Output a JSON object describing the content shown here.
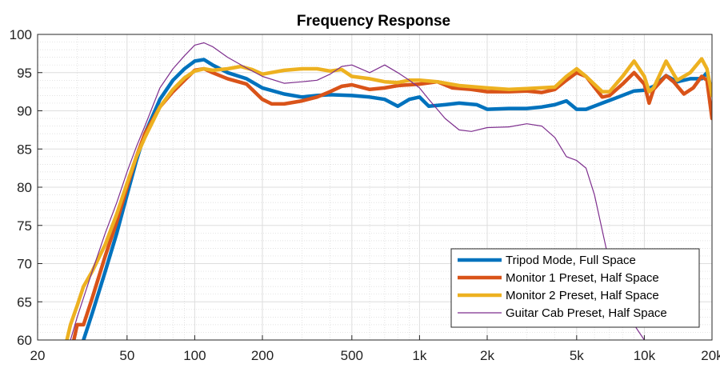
{
  "chart_data": {
    "type": "line",
    "title": "Frequency Response",
    "xlabel": "",
    "ylabel": "",
    "x_scale": "log",
    "xlim": [
      20,
      20000
    ],
    "ylim": [
      60,
      100
    ],
    "x_ticks": [
      20,
      50,
      100,
      200,
      500,
      1000,
      2000,
      5000,
      10000,
      20000
    ],
    "x_tick_labels": [
      "20",
      "50",
      "100",
      "200",
      "500",
      "1k",
      "2k",
      "5k",
      "10k",
      "20k"
    ],
    "y_ticks": [
      60,
      65,
      70,
      75,
      80,
      85,
      90,
      95,
      100
    ],
    "y_tick_labels": [
      "60",
      "65",
      "70",
      "75",
      "80",
      "85",
      "90",
      "95",
      "100"
    ],
    "grid": true,
    "minor_grid": true,
    "legend_position": "bottom-right",
    "series": [
      {
        "name": "Tripod Mode, Full Space",
        "color": "#0072BD",
        "style": "thick",
        "points": [
          [
            32,
            60
          ],
          [
            35,
            63.5
          ],
          [
            40,
            69
          ],
          [
            45,
            74
          ],
          [
            50,
            79
          ],
          [
            55,
            83.5
          ],
          [
            60,
            87
          ],
          [
            70,
            91.5
          ],
          [
            80,
            94
          ],
          [
            90,
            95.5
          ],
          [
            100,
            96.5
          ],
          [
            110,
            96.7
          ],
          [
            120,
            96
          ],
          [
            140,
            95
          ],
          [
            170,
            94.2
          ],
          [
            200,
            93
          ],
          [
            250,
            92.2
          ],
          [
            300,
            91.8
          ],
          [
            350,
            92
          ],
          [
            400,
            92.1
          ],
          [
            500,
            92
          ],
          [
            600,
            91.8
          ],
          [
            700,
            91.5
          ],
          [
            800,
            90.6
          ],
          [
            900,
            91.5
          ],
          [
            1000,
            91.8
          ],
          [
            1100,
            90.6
          ],
          [
            1300,
            90.8
          ],
          [
            1500,
            91
          ],
          [
            1800,
            90.8
          ],
          [
            2000,
            90.2
          ],
          [
            2500,
            90.3
          ],
          [
            3000,
            90.3
          ],
          [
            3500,
            90.5
          ],
          [
            4000,
            90.8
          ],
          [
            4500,
            91.3
          ],
          [
            5000,
            90.2
          ],
          [
            5500,
            90.2
          ],
          [
            6500,
            91
          ],
          [
            7500,
            91.7
          ],
          [
            9000,
            92.6
          ],
          [
            10000,
            92.7
          ],
          [
            11000,
            93.2
          ],
          [
            12500,
            94.6
          ],
          [
            14000,
            93.8
          ],
          [
            16000,
            94.2
          ],
          [
            18000,
            94.2
          ],
          [
            19000,
            95
          ],
          [
            20000,
            92.5
          ]
        ]
      },
      {
        "name": "Monitor 1 Preset, Half Space",
        "color": "#D95319",
        "style": "thick",
        "points": [
          [
            29,
            60
          ],
          [
            30,
            62
          ],
          [
            32,
            62
          ],
          [
            35,
            65.5
          ],
          [
            40,
            71
          ],
          [
            45,
            75.5
          ],
          [
            50,
            80
          ],
          [
            55,
            84
          ],
          [
            60,
            87
          ],
          [
            70,
            90.5
          ],
          [
            80,
            92.5
          ],
          [
            90,
            94
          ],
          [
            100,
            95.3
          ],
          [
            110,
            95.5
          ],
          [
            120,
            95
          ],
          [
            140,
            94.2
          ],
          [
            170,
            93.5
          ],
          [
            200,
            91.5
          ],
          [
            220,
            90.9
          ],
          [
            250,
            90.9
          ],
          [
            300,
            91.3
          ],
          [
            350,
            91.8
          ],
          [
            400,
            92.5
          ],
          [
            450,
            93.2
          ],
          [
            500,
            93.4
          ],
          [
            600,
            92.8
          ],
          [
            700,
            93
          ],
          [
            800,
            93.3
          ],
          [
            900,
            93.4
          ],
          [
            1000,
            93.5
          ],
          [
            1200,
            93.8
          ],
          [
            1400,
            93
          ],
          [
            1700,
            92.8
          ],
          [
            2000,
            92.5
          ],
          [
            2500,
            92.5
          ],
          [
            3000,
            92.6
          ],
          [
            3500,
            92.4
          ],
          [
            4000,
            92.8
          ],
          [
            4500,
            94
          ],
          [
            5000,
            95
          ],
          [
            5500,
            94.5
          ],
          [
            6500,
            91.8
          ],
          [
            7000,
            92
          ],
          [
            8000,
            93.5
          ],
          [
            9000,
            95
          ],
          [
            10000,
            93.5
          ],
          [
            10500,
            91
          ],
          [
            11000,
            92.8
          ],
          [
            12500,
            94.6
          ],
          [
            13500,
            93.8
          ],
          [
            15000,
            92.2
          ],
          [
            16500,
            93
          ],
          [
            18000,
            94.5
          ],
          [
            19000,
            94
          ],
          [
            20000,
            89
          ]
        ]
      },
      {
        "name": "Monitor 2 Preset, Half Space",
        "color": "#EDB120",
        "style": "thick",
        "points": [
          [
            27,
            60
          ],
          [
            28,
            62
          ],
          [
            30,
            64.5
          ],
          [
            32,
            67
          ],
          [
            35,
            69
          ],
          [
            40,
            72.5
          ],
          [
            45,
            76.5
          ],
          [
            50,
            80.5
          ],
          [
            55,
            84
          ],
          [
            60,
            86.5
          ],
          [
            70,
            90.5
          ],
          [
            80,
            92.8
          ],
          [
            90,
            94.3
          ],
          [
            100,
            95.2
          ],
          [
            110,
            95.5
          ],
          [
            120,
            95.3
          ],
          [
            140,
            95.5
          ],
          [
            160,
            95.8
          ],
          [
            180,
            95.4
          ],
          [
            200,
            94.8
          ],
          [
            250,
            95.3
          ],
          [
            300,
            95.5
          ],
          [
            350,
            95.5
          ],
          [
            400,
            95.2
          ],
          [
            450,
            95.4
          ],
          [
            500,
            94.5
          ],
          [
            600,
            94.2
          ],
          [
            700,
            93.8
          ],
          [
            800,
            93.7
          ],
          [
            900,
            94
          ],
          [
            1000,
            94
          ],
          [
            1200,
            93.8
          ],
          [
            1500,
            93.3
          ],
          [
            2000,
            93
          ],
          [
            2500,
            92.8
          ],
          [
            3000,
            92.9
          ],
          [
            4000,
            93.1
          ],
          [
            4500,
            94.5
          ],
          [
            5000,
            95.5
          ],
          [
            5500,
            94.5
          ],
          [
            6500,
            92.5
          ],
          [
            7000,
            92.5
          ],
          [
            8000,
            94.5
          ],
          [
            9000,
            96.5
          ],
          [
            10000,
            94.5
          ],
          [
            10500,
            92.5
          ],
          [
            11000,
            93
          ],
          [
            12500,
            96.5
          ],
          [
            14000,
            94
          ],
          [
            16000,
            95
          ],
          [
            18000,
            96.8
          ],
          [
            19000,
            95.5
          ],
          [
            20000,
            92
          ]
        ]
      },
      {
        "name": "Guitar Cab Preset, Half Space",
        "color": "#7E2F8E",
        "style": "thin",
        "points": [
          [
            28,
            60
          ],
          [
            30,
            63
          ],
          [
            35,
            69
          ],
          [
            40,
            74
          ],
          [
            45,
            78
          ],
          [
            50,
            82
          ],
          [
            55,
            85.3
          ],
          [
            60,
            88
          ],
          [
            70,
            93
          ],
          [
            80,
            95.5
          ],
          [
            90,
            97.2
          ],
          [
            100,
            98.6
          ],
          [
            110,
            98.9
          ],
          [
            120,
            98.4
          ],
          [
            140,
            97
          ],
          [
            170,
            95.6
          ],
          [
            200,
            94.5
          ],
          [
            250,
            93.6
          ],
          [
            300,
            93.8
          ],
          [
            350,
            94
          ],
          [
            400,
            94.8
          ],
          [
            450,
            95.8
          ],
          [
            500,
            96
          ],
          [
            600,
            95
          ],
          [
            700,
            96
          ],
          [
            800,
            95
          ],
          [
            900,
            94
          ],
          [
            1000,
            93
          ],
          [
            1100,
            91.5
          ],
          [
            1300,
            89
          ],
          [
            1500,
            87.5
          ],
          [
            1700,
            87.3
          ],
          [
            2000,
            87.8
          ],
          [
            2500,
            87.9
          ],
          [
            3000,
            88.3
          ],
          [
            3500,
            88
          ],
          [
            4000,
            86.5
          ],
          [
            4500,
            84
          ],
          [
            5000,
            83.5
          ],
          [
            5500,
            82.5
          ],
          [
            6000,
            79
          ],
          [
            7000,
            70
          ],
          [
            8000,
            64
          ],
          [
            9000,
            62
          ],
          [
            10000,
            60
          ]
        ]
      }
    ]
  }
}
